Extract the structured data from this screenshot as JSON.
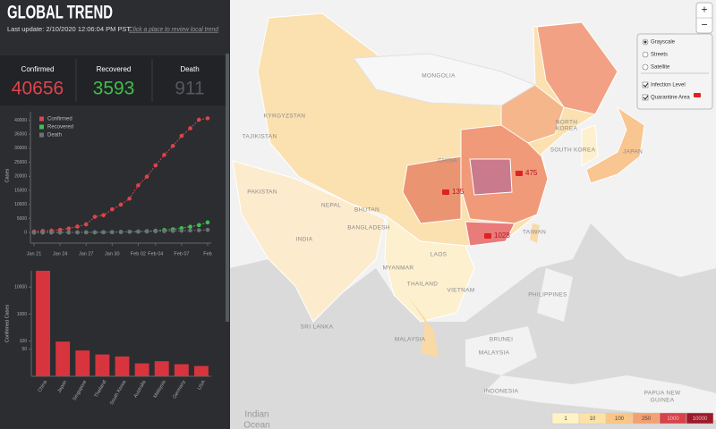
{
  "header": {
    "title": "GLOBAL TREND",
    "last_update": "Last update: 2/10/2020 12:06:04 PM PST",
    "link": "Click a place to review local trend"
  },
  "stats": [
    {
      "label": "Confirmed",
      "value": 40656,
      "color": "#e0434b"
    },
    {
      "label": "Recovered",
      "value": 3593,
      "color": "#3fbf4a"
    },
    {
      "label": "Death",
      "value": 911,
      "color": "#55585e"
    }
  ],
  "chart_data": [
    {
      "type": "line",
      "y_label": "Cases",
      "categories": [
        "Jan 21",
        null,
        null,
        "Jan 24",
        null,
        null,
        "Jan 27",
        null,
        null,
        "Jan 30",
        null,
        null,
        "Feb 02",
        null,
        "Feb 04",
        null,
        null,
        "Feb 07",
        null,
        null,
        "Feb"
      ],
      "series": [
        {
          "name": "Confirmed",
          "color": "#e0434b",
          "values": [
            330,
            555,
            653,
            941,
            1438,
            2118,
            2927,
            5578,
            6165,
            8235,
            9925,
            12038,
            16787,
            19881,
            23892,
            27636,
            30818,
            34392,
            37121,
            40151,
            40656
          ]
        },
        {
          "name": "Recovered",
          "color": "#3fbf4a",
          "values": [
            0,
            28,
            28,
            34,
            38,
            49,
            51,
            60,
            103,
            124,
            171,
            243,
            328,
            475,
            632,
            892,
            1153,
            1540,
            2050,
            2649,
            3593
          ]
        },
        {
          "name": "Death",
          "color": "#6e7178",
          "values": [
            6,
            17,
            18,
            26,
            42,
            56,
            82,
            106,
            132,
            170,
            213,
            259,
            304,
            362,
            426,
            492,
            565,
            638,
            724,
            813,
            911
          ]
        }
      ],
      "ylim": [
        -2500,
        43000
      ],
      "yticks": [
        0,
        5000,
        10000,
        15000,
        20000,
        25000,
        30000,
        35000,
        40000
      ],
      "legend": "top-left",
      "grid": false
    },
    {
      "type": "bar",
      "y_label": "Confirmed Cases",
      "categories": [
        "China",
        "Japan",
        "Singapore",
        "Thailand",
        "South Korea",
        "Australia",
        "Malaysia",
        "Germany",
        "USA"
      ],
      "values": [
        40171,
        96,
        45,
        32,
        27,
        15,
        18,
        14,
        12
      ],
      "color": "#d8343e",
      "log_scale": true,
      "ylim": [
        5,
        40000
      ],
      "yticks": [
        50,
        100,
        1000,
        10000
      ]
    }
  ],
  "map": {
    "labels": [
      "MONGOLIA",
      "KYRGYZSTAN",
      "TAJIKISTAN",
      "PAKISTAN",
      "INDIA",
      "NEPAL",
      "BHUTAN",
      "BANGLADESH",
      "MYANMAR",
      "LAOS",
      "THAILAND",
      "VIETNAM",
      "PHILIPPINES",
      "MALAYSIA",
      "BRUNEI",
      "MALAYSIA",
      "INDONESIA",
      "PAPUA NEW",
      "GUINEA",
      "SRI LANKA",
      "NORTH",
      "KOREA",
      "SOUTH KOREA",
      "JAPAN",
      "TAIWAN",
      "CHINA",
      "Indian",
      "Ocean"
    ],
    "markers": [
      475,
      135,
      1028
    ],
    "layers": [
      {
        "label": "Grayscale",
        "kind": "radio",
        "checked": true
      },
      {
        "label": "Streets",
        "kind": "radio",
        "checked": false
      },
      {
        "label": "Satellite",
        "kind": "radio",
        "checked": false
      },
      {
        "label": "Infection Level",
        "kind": "checkbox",
        "checked": true
      },
      {
        "label": "Quarantine Area",
        "kind": "checkbox",
        "checked": true
      }
    ],
    "zoom": [
      "+",
      "−"
    ],
    "legend": [
      {
        "value": 1,
        "color": "#fff3c4"
      },
      {
        "value": 10,
        "color": "#fde2a6"
      },
      {
        "value": 100,
        "color": "#fbc684"
      },
      {
        "value": 250,
        "color": "#f4a072"
      },
      {
        "value": 1000,
        "color": "#d8424a"
      },
      {
        "value": 10000,
        "color": "#9c1a2a"
      }
    ]
  }
}
